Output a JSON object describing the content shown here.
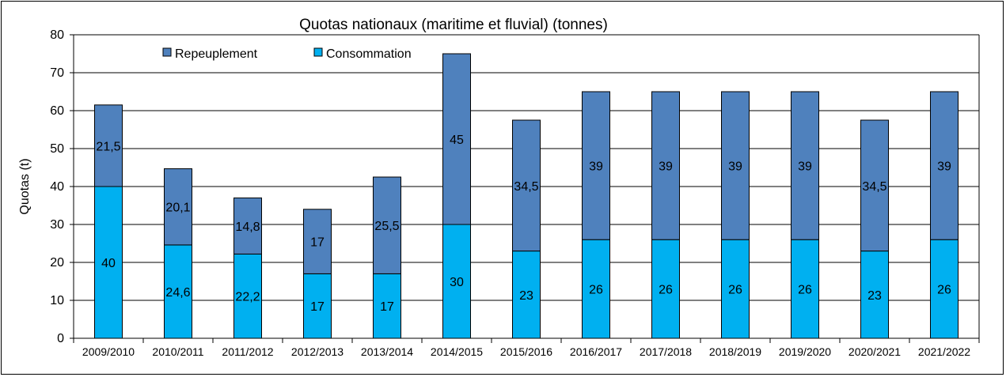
{
  "chart_data": {
    "type": "bar",
    "stacked": true,
    "title": "Quotas nationaux (maritime et fluvial) (tonnes)",
    "xlabel": "",
    "ylabel": "Quotas (t)",
    "ylim": [
      0,
      80
    ],
    "yticks": [
      0,
      10,
      20,
      30,
      40,
      50,
      60,
      70,
      80
    ],
    "grid": true,
    "legend_position": "top-left",
    "categories": [
      "2009/2010",
      "2010/2011",
      "2011/2012",
      "2012/2013",
      "2013/2014",
      "2014/2015",
      "2015/2016",
      "2016/2017",
      "2017/2018",
      "2018/2019",
      "2019/2020",
      "2020/2021",
      "2021/2022"
    ],
    "series": [
      {
        "name": "Consommation",
        "color": "#00B0F0",
        "values": [
          40,
          24.6,
          22.2,
          17,
          17,
          30,
          23,
          26,
          26,
          26,
          26,
          23,
          26
        ],
        "labels": [
          "40",
          "24,6",
          "22,2",
          "17",
          "17",
          "30",
          "23",
          "26",
          "26",
          "26",
          "26",
          "23",
          "26"
        ]
      },
      {
        "name": "Repeuplement",
        "color": "#4F81BD",
        "values": [
          21.5,
          20.1,
          14.8,
          17,
          25.5,
          45,
          34.5,
          39,
          39,
          39,
          39,
          34.5,
          39
        ],
        "labels": [
          "21,5",
          "20,1",
          "14,8",
          "17",
          "25,5",
          "45",
          "34,5",
          "39",
          "39",
          "39",
          "39",
          "34,5",
          "39"
        ]
      }
    ],
    "legend": [
      {
        "name": "Repeuplement",
        "color": "#4F81BD"
      },
      {
        "name": "Consommation",
        "color": "#00B0F0"
      }
    ]
  }
}
